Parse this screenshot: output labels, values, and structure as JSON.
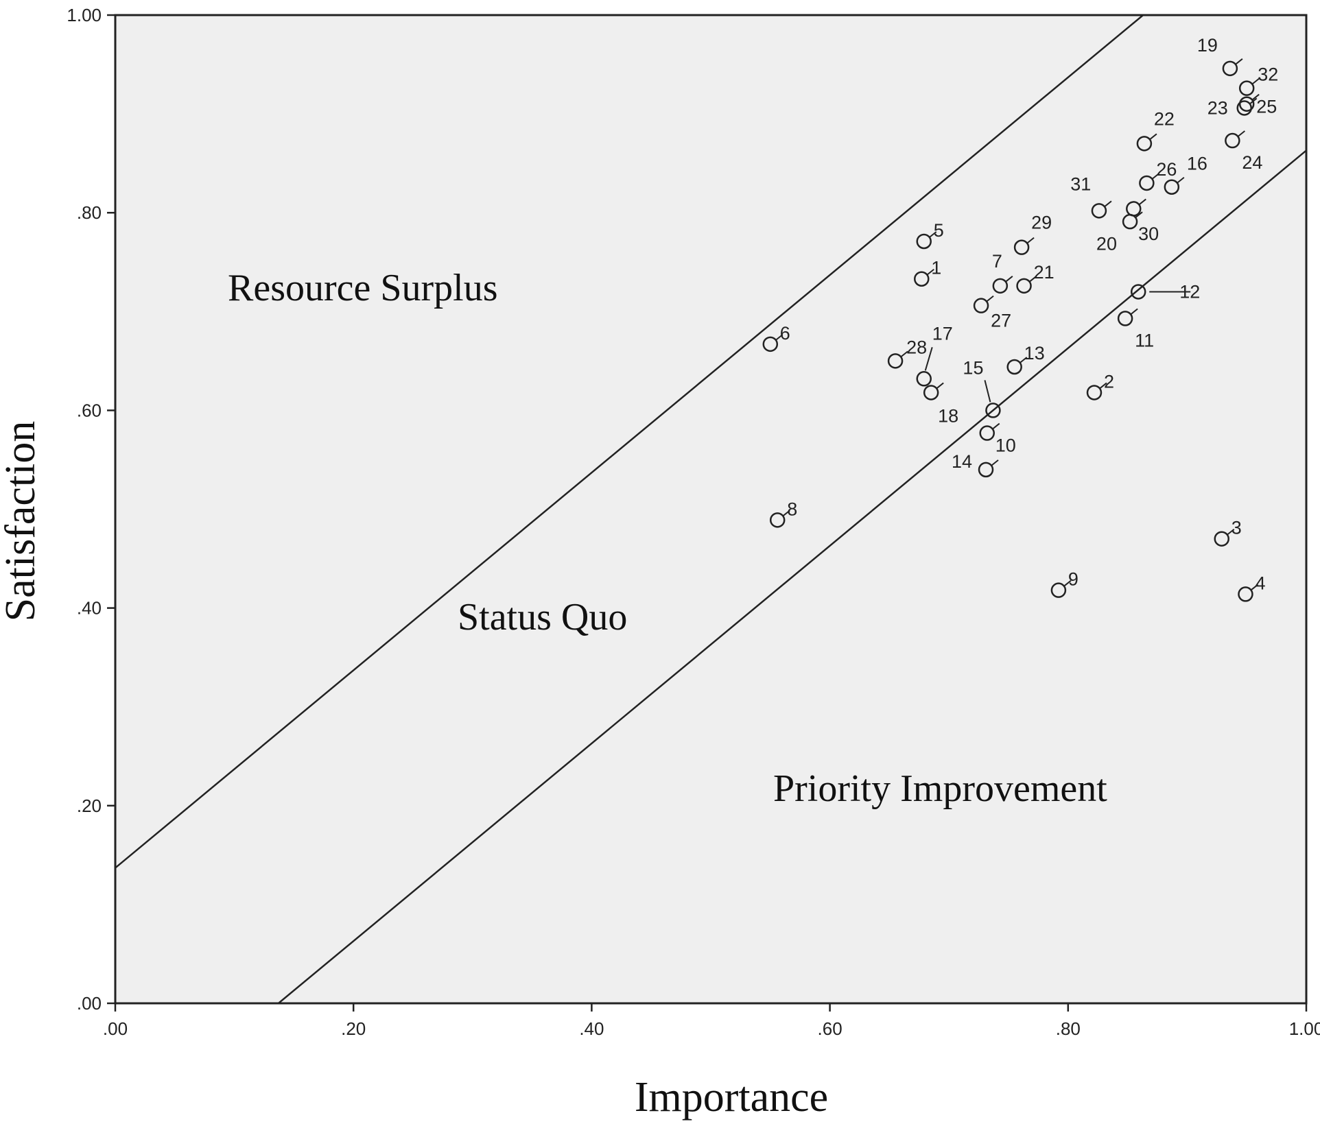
{
  "chart_data": {
    "type": "scatter",
    "xlabel": "Importance",
    "ylabel": "Satisfaction",
    "xlim": [
      0,
      1
    ],
    "ylim": [
      0,
      1
    ],
    "x_ticks": [
      ".00",
      ".20",
      ".40",
      ".60",
      ".80",
      "1.00"
    ],
    "y_ticks": [
      ".00",
      ".20",
      ".40",
      ".60",
      ".80",
      "1.00"
    ],
    "grid": false,
    "background": "#efefef",
    "reference_lines": [
      {
        "x1": 0,
        "y1": 0.137,
        "x2": 0.863,
        "y2": 1.0
      },
      {
        "x1": 0.137,
        "y1": 0,
        "x2": 1.0,
        "y2": 0.863
      }
    ],
    "regions": [
      "Resource Surplus",
      "Status Quo",
      "Priority Improvement"
    ],
    "points": [
      {
        "label": "1",
        "x": 0.677,
        "y": 0.733
      },
      {
        "label": "2",
        "x": 0.822,
        "y": 0.618
      },
      {
        "label": "3",
        "x": 0.929,
        "y": 0.47
      },
      {
        "label": "4",
        "x": 0.949,
        "y": 0.414
      },
      {
        "label": "5",
        "x": 0.679,
        "y": 0.771
      },
      {
        "label": "6",
        "x": 0.55,
        "y": 0.667
      },
      {
        "label": "7",
        "x": 0.743,
        "y": 0.726
      },
      {
        "label": "8",
        "x": 0.556,
        "y": 0.489
      },
      {
        "label": "9",
        "x": 0.792,
        "y": 0.418
      },
      {
        "label": "10",
        "x": 0.732,
        "y": 0.577
      },
      {
        "label": "11",
        "x": 0.848,
        "y": 0.693
      },
      {
        "label": "12",
        "x": 0.859,
        "y": 0.72
      },
      {
        "label": "13",
        "x": 0.755,
        "y": 0.644
      },
      {
        "label": "14",
        "x": 0.731,
        "y": 0.54
      },
      {
        "label": "15",
        "x": 0.737,
        "y": 0.6
      },
      {
        "label": "16",
        "x": 0.887,
        "y": 0.826
      },
      {
        "label": "17",
        "x": 0.679,
        "y": 0.632
      },
      {
        "label": "18",
        "x": 0.685,
        "y": 0.618
      },
      {
        "label": "19",
        "x": 0.936,
        "y": 0.946
      },
      {
        "label": "20",
        "x": 0.826,
        "y": 0.802
      },
      {
        "label": "21",
        "x": 0.763,
        "y": 0.726
      },
      {
        "label": "22",
        "x": 0.864,
        "y": 0.87
      },
      {
        "label": "23",
        "x": 0.948,
        "y": 0.906
      },
      {
        "label": "24",
        "x": 0.938,
        "y": 0.873
      },
      {
        "label": "25",
        "x": 0.95,
        "y": 0.91
      },
      {
        "label": "26",
        "x": 0.866,
        "y": 0.83
      },
      {
        "label": "27",
        "x": 0.727,
        "y": 0.706
      },
      {
        "label": "28",
        "x": 0.655,
        "y": 0.65
      },
      {
        "label": "29",
        "x": 0.761,
        "y": 0.765
      },
      {
        "label": "30",
        "x": 0.852,
        "y": 0.791
      },
      {
        "label": "31",
        "x": 0.855,
        "y": 0.804
      },
      {
        "label": "32",
        "x": 0.95,
        "y": 0.926
      }
    ]
  }
}
